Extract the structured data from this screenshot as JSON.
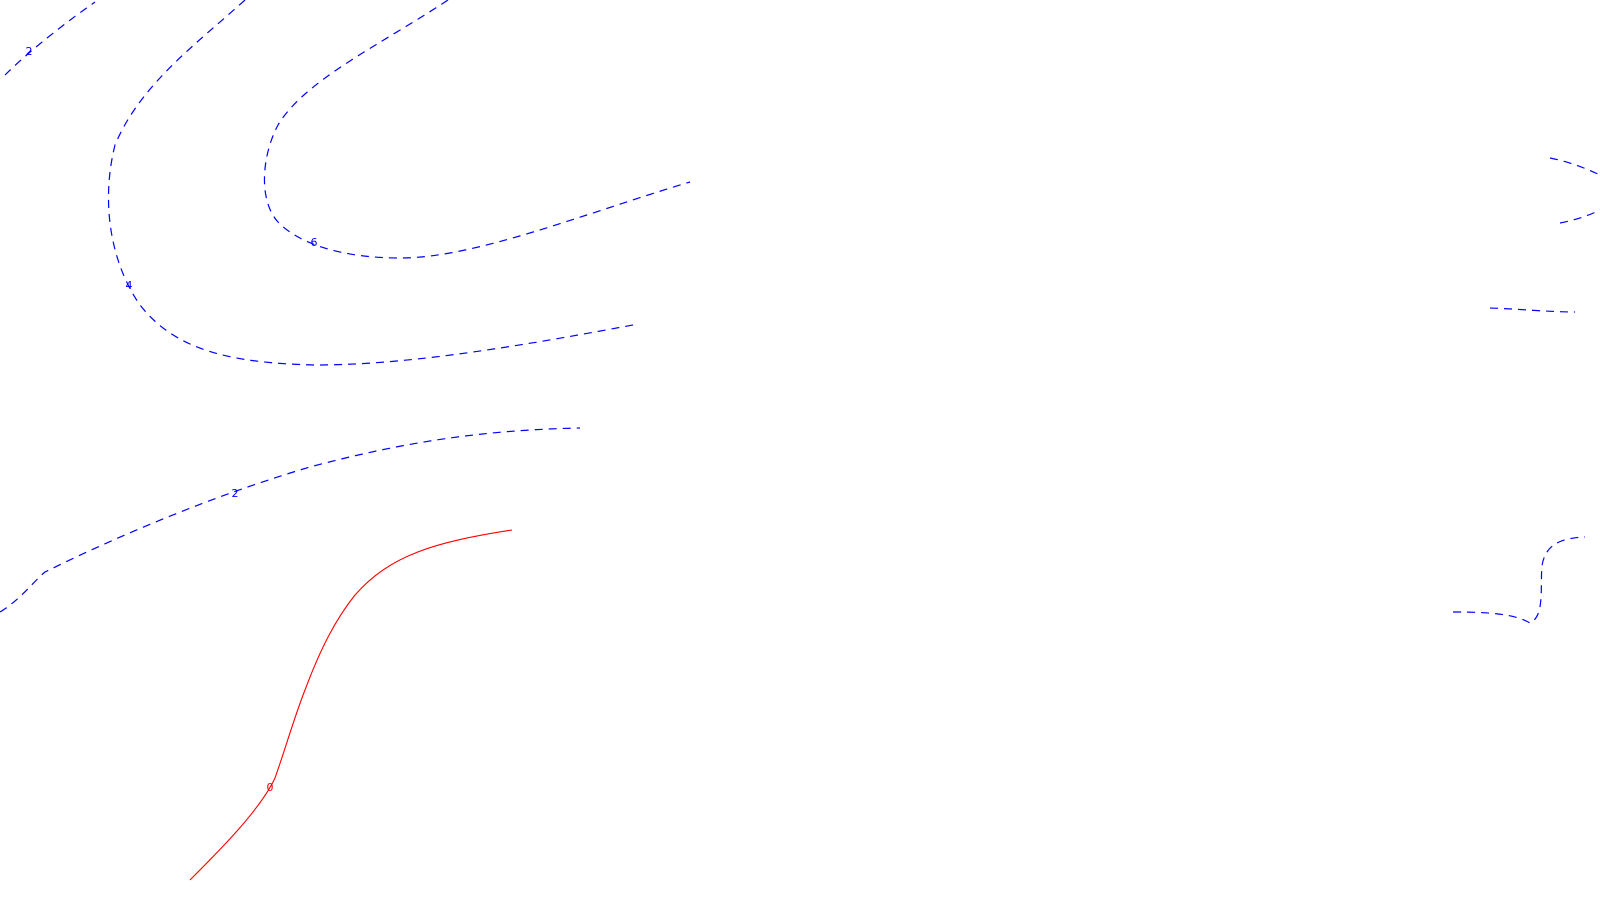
{
  "map": {
    "colors": {
      "background": "#ffffff",
      "positive_contour": "#0000ff",
      "zero_contour": "#ff0000"
    },
    "contours": [
      {
        "id": "contour-2-top-left",
        "level": 2,
        "style": "dashed",
        "label": "2"
      },
      {
        "id": "contour-4",
        "level": 4,
        "style": "dashed",
        "label": "4"
      },
      {
        "id": "contour-6",
        "level": 6,
        "style": "dashed",
        "label": "6"
      },
      {
        "id": "contour-2-middle",
        "level": 2,
        "style": "dashed",
        "label": "2"
      },
      {
        "id": "contour-0",
        "level": 0,
        "style": "solid",
        "label": "0"
      },
      {
        "id": "contour-right-fragment-upper",
        "style": "dashed",
        "label": ""
      },
      {
        "id": "contour-right-fragment-middle",
        "style": "dashed",
        "label": ""
      },
      {
        "id": "contour-right-fragment-lower",
        "style": "dashed",
        "label": ""
      }
    ]
  }
}
